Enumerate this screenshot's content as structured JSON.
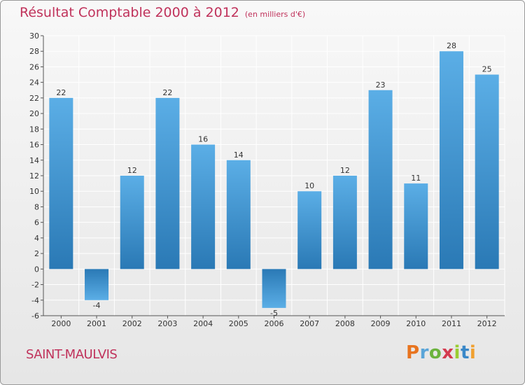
{
  "header": {
    "title": "Résultat Comptable 2000 à 2012",
    "subtitle": "(en milliers d'€)"
  },
  "footer": {
    "commune": "SAINT-MAULVIS",
    "logo_text": "Proxiti",
    "logo_colors": [
      "#e8741f",
      "#5aa5d8",
      "#6cb33e",
      "#d43b4f",
      "#9acd32",
      "#3a88c8",
      "#f0a030"
    ]
  },
  "colors": {
    "bar_light": "#5baee6",
    "bar_dark": "#2a79b5",
    "title": "#c0325b",
    "grid": "#ffffff"
  },
  "chart_data": {
    "type": "bar",
    "categories": [
      "2000",
      "2001",
      "2002",
      "2003",
      "2004",
      "2005",
      "2006",
      "2007",
      "2008",
      "2009",
      "2010",
      "2011",
      "2012"
    ],
    "values": [
      22,
      -4,
      12,
      22,
      16,
      14,
      -5,
      10,
      12,
      23,
      11,
      28,
      25
    ],
    "ylim": [
      -6,
      30
    ],
    "yticks": [
      -6,
      -4,
      -2,
      0,
      2,
      4,
      6,
      8,
      10,
      12,
      14,
      16,
      18,
      20,
      22,
      24,
      26,
      28,
      30
    ],
    "grid": true
  }
}
